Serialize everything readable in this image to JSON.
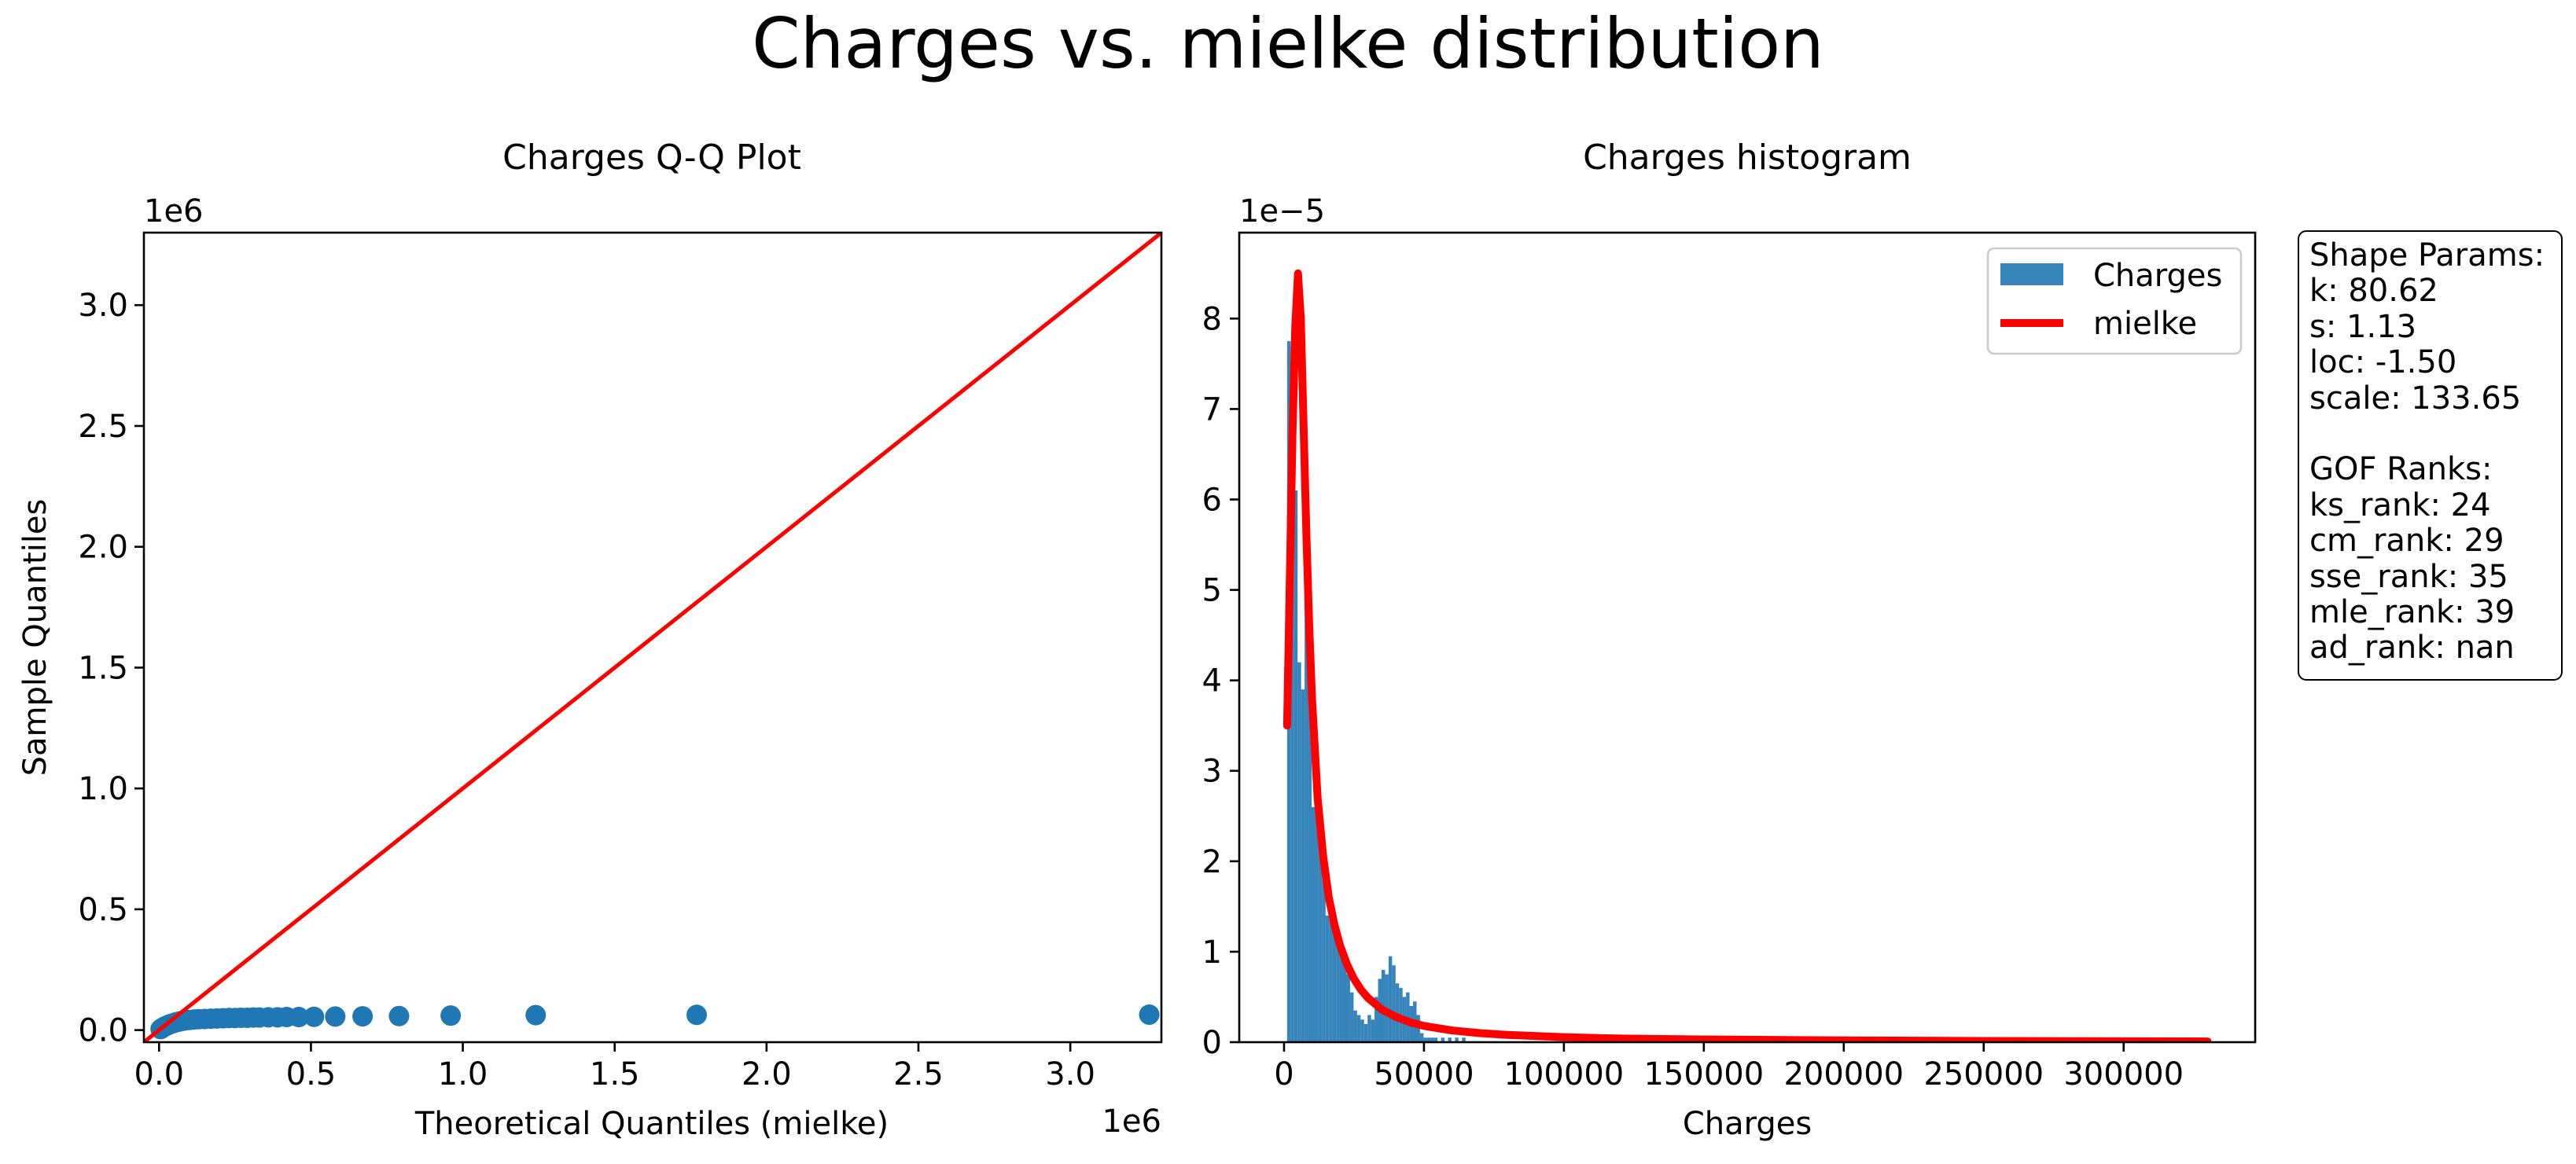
{
  "figure": {
    "suptitle": "Charges vs. mielke distribution"
  },
  "qq_plot": {
    "title": "Charges Q-Q Plot",
    "xlabel": "Theoretical Quantiles (mielke)",
    "ylabel": "Sample Quantiles",
    "x_offset_label": "1e6",
    "y_offset_label": "1e6",
    "x_ticks": [
      0.0,
      0.5,
      1.0,
      1.5,
      2.0,
      2.5,
      3.0
    ],
    "y_ticks": [
      0.0,
      0.5,
      1.0,
      1.5,
      2.0,
      2.5,
      3.0
    ],
    "x_tick_labels": [
      "0.0",
      "0.5",
      "1.0",
      "1.5",
      "2.0",
      "2.5",
      "3.0"
    ],
    "y_tick_labels": [
      "0.0",
      "0.5",
      "1.0",
      "1.5",
      "2.0",
      "2.5",
      "3.0"
    ],
    "xlim": [
      -0.05,
      3.3
    ],
    "ylim": [
      -0.05,
      3.3
    ],
    "line_color": "#ff0000",
    "point_color": "#1f77b4"
  },
  "histogram": {
    "title": "Charges histogram",
    "xlabel": "Charges",
    "y_offset_label": "1e−5",
    "x_ticks": [
      0,
      50000,
      100000,
      150000,
      200000,
      250000,
      300000
    ],
    "x_tick_labels": [
      "0",
      "50000",
      "100000",
      "150000",
      "200000",
      "250000",
      "300000"
    ],
    "y_ticks": [
      0,
      1,
      2,
      3,
      4,
      5,
      6,
      7,
      8
    ],
    "y_tick_labels": [
      "0",
      "1",
      "2",
      "3",
      "4",
      "5",
      "6",
      "7",
      "8"
    ],
    "xlim": [
      -16000,
      347000
    ],
    "ylim": [
      0,
      8.95
    ],
    "bar_color": "#1f77b4",
    "curve_color": "#ff0000",
    "legend": {
      "position": "top-right",
      "entries": [
        {
          "label": "Charges",
          "kind": "bar"
        },
        {
          "label": "mielke",
          "kind": "line"
        }
      ]
    }
  },
  "params_box": {
    "lines": [
      "Shape Params:",
      "k: 80.62",
      "s: 1.13",
      "loc: -1.50",
      "scale: 133.65",
      "",
      "GOF Ranks:",
      "ks_rank: 24",
      "cm_rank: 29",
      "sse_rank: 35",
      "mle_rank: 39",
      "ad_rank: nan"
    ]
  },
  "chart_data": [
    {
      "type": "scatter",
      "title": "Charges Q-Q Plot",
      "xlabel": "Theoretical Quantiles (mielke)",
      "ylabel": "Sample Quantiles",
      "units_note": "1e6",
      "xlim": [
        -0.05,
        3.3
      ],
      "ylim": [
        -0.05,
        3.3
      ],
      "series": [
        {
          "name": "points",
          "x": [
            0.005,
            0.01,
            0.015,
            0.02,
            0.028,
            0.035,
            0.045,
            0.055,
            0.065,
            0.075,
            0.085,
            0.1,
            0.115,
            0.13,
            0.15,
            0.17,
            0.19,
            0.21,
            0.23,
            0.25,
            0.27,
            0.29,
            0.31,
            0.33,
            0.36,
            0.39,
            0.42,
            0.46,
            0.51,
            0.58,
            0.67,
            0.79,
            0.96,
            1.24,
            1.77,
            3.26
          ],
          "y": [
            0.004,
            0.008,
            0.012,
            0.016,
            0.02,
            0.024,
            0.028,
            0.032,
            0.035,
            0.038,
            0.04,
            0.042,
            0.044,
            0.045,
            0.046,
            0.047,
            0.048,
            0.049,
            0.05,
            0.05,
            0.051,
            0.051,
            0.052,
            0.052,
            0.053,
            0.053,
            0.054,
            0.054,
            0.055,
            0.056,
            0.057,
            0.058,
            0.06,
            0.062,
            0.063,
            0.064
          ]
        },
        {
          "name": "reference line",
          "x": [
            -0.05,
            3.3
          ],
          "y": [
            -0.05,
            3.3
          ]
        }
      ]
    },
    {
      "type": "bar",
      "title": "Charges histogram",
      "xlabel": "Charges",
      "units_note": "1e−5",
      "xlim": [
        -16000,
        347000
      ],
      "ylim": [
        0,
        8.95
      ],
      "bin_width": 1250,
      "bin_starts": [
        1100,
        2350,
        3600,
        4850,
        6100,
        7350,
        8600,
        9850,
        11100,
        12350,
        13600,
        14850,
        16100,
        17350,
        18600,
        19850,
        21100,
        22350,
        23600,
        24850,
        26100,
        27350,
        28600,
        29850,
        31100,
        32350,
        33600,
        34850,
        36100,
        37350,
        38600,
        39850,
        41100,
        42350,
        43600,
        44850,
        46100,
        47350,
        48600,
        49850,
        51100,
        52350,
        53600,
        54850,
        56100,
        57350,
        58600,
        59850,
        61100,
        62350,
        63600
      ],
      "values": [
        7.75,
        7.1,
        6.1,
        4.2,
        3.9,
        5.15,
        4.05,
        2.6,
        2.55,
        2.45,
        1.8,
        1.4,
        1.45,
        1.25,
        1.2,
        1.1,
        1.0,
        0.75,
        0.55,
        0.35,
        0.3,
        0.25,
        0.2,
        0.3,
        0.25,
        0.5,
        0.7,
        0.8,
        0.75,
        0.95,
        0.85,
        0.65,
        0.6,
        0.5,
        0.55,
        0.4,
        0.45,
        0.3,
        0.1,
        0.05,
        0.05,
        0.05,
        0.05,
        0.0,
        0.05,
        0.0,
        0.05,
        0.0,
        0.05,
        0.0,
        0.05
      ],
      "series": [
        {
          "name": "mielke",
          "x": [
            1100,
            2000,
            3000,
            4000,
            5000,
            6000,
            7000,
            8000,
            9000,
            10000,
            12000,
            14000,
            16000,
            18000,
            20000,
            22500,
            25000,
            27500,
            30000,
            35000,
            40000,
            45000,
            50000,
            60000,
            70000,
            80000,
            100000,
            120000,
            150000,
            200000,
            250000,
            300000,
            330000
          ],
          "y": [
            3.5,
            5.0,
            6.7,
            7.9,
            8.5,
            8.0,
            6.8,
            5.6,
            4.6,
            3.8,
            2.7,
            2.05,
            1.6,
            1.3,
            1.07,
            0.86,
            0.7,
            0.58,
            0.49,
            0.36,
            0.28,
            0.22,
            0.18,
            0.13,
            0.1,
            0.08,
            0.055,
            0.04,
            0.03,
            0.02,
            0.013,
            0.01,
            0.008
          ]
        }
      ]
    }
  ]
}
